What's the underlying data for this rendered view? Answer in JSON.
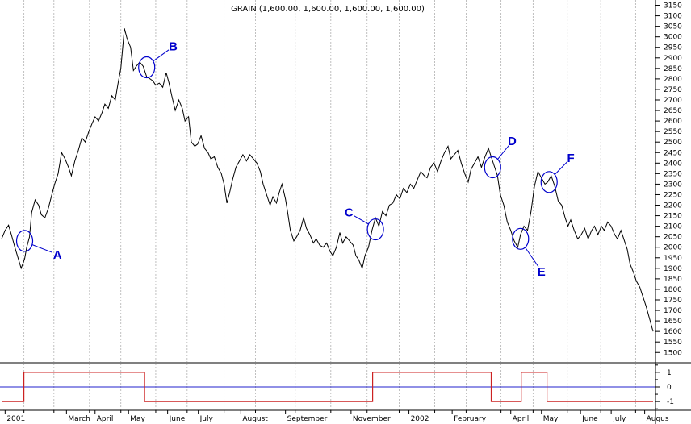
{
  "chart_data": {
    "type": "line",
    "title": "GRAIN (1,600.00, 1,600.00, 1,600.00, 1,600.00)",
    "xlabel": "",
    "ylabel": "",
    "ylim": [
      1455,
      3175
    ],
    "y_ticks": [
      1500,
      1550,
      1600,
      1650,
      1700,
      1750,
      1800,
      1850,
      1900,
      1950,
      2000,
      2050,
      2100,
      2150,
      2200,
      2250,
      2300,
      2350,
      2400,
      2450,
      2500,
      2550,
      2600,
      2650,
      2700,
      2750,
      2800,
      2850,
      2900,
      2950,
      3000,
      3050,
      3100,
      3150
    ],
    "x_range": [
      0,
      100
    ],
    "x_ticks": [
      {
        "label": "2001",
        "x": 0.5
      },
      {
        "label": "March",
        "x": 9.3
      },
      {
        "label": "April",
        "x": 13.4
      },
      {
        "label": "May",
        "x": 18.2
      },
      {
        "label": "June",
        "x": 23.8
      },
      {
        "label": "July",
        "x": 28.2
      },
      {
        "label": "August",
        "x": 34.3
      },
      {
        "label": "September",
        "x": 40.7
      },
      {
        "label": "November",
        "x": 50.1
      },
      {
        "label": "2002",
        "x": 58.4
      },
      {
        "label": "February",
        "x": 64.6
      },
      {
        "label": "April",
        "x": 73.0
      },
      {
        "label": "May",
        "x": 77.4
      },
      {
        "label": "June",
        "x": 83.0
      },
      {
        "label": "July",
        "x": 87.4
      },
      {
        "label": "Augus",
        "x": 92.2
      }
    ],
    "grid_x": [
      3.2,
      7.5,
      12.6,
      17.1,
      22.1,
      26.6,
      31.9,
      36.4,
      42.1,
      47.2,
      52.4,
      57.0,
      62.1,
      66.6,
      71.6,
      76.2,
      81.1,
      85.9,
      90.9
    ],
    "series": [
      {
        "values": [
          [
            0.0,
            2040
          ],
          [
            0.5,
            2080
          ],
          [
            1.0,
            2105
          ],
          [
            1.4,
            2060
          ],
          [
            1.9,
            2000
          ],
          [
            2.4,
            1945
          ],
          [
            2.8,
            1900
          ],
          [
            3.3,
            1945
          ],
          [
            3.6,
            2000
          ],
          [
            4.0,
            2050
          ],
          [
            4.3,
            2165
          ],
          [
            4.8,
            2225
          ],
          [
            5.3,
            2200
          ],
          [
            5.7,
            2155
          ],
          [
            6.2,
            2140
          ],
          [
            6.7,
            2185
          ],
          [
            7.2,
            2250
          ],
          [
            7.6,
            2300
          ],
          [
            8.1,
            2350
          ],
          [
            8.6,
            2450
          ],
          [
            9.1,
            2420
          ],
          [
            9.6,
            2380
          ],
          [
            10.0,
            2340
          ],
          [
            10.5,
            2410
          ],
          [
            11.0,
            2460
          ],
          [
            11.5,
            2520
          ],
          [
            12.0,
            2500
          ],
          [
            12.5,
            2550
          ],
          [
            13.0,
            2590
          ],
          [
            13.4,
            2620
          ],
          [
            13.9,
            2600
          ],
          [
            14.4,
            2640
          ],
          [
            14.8,
            2680
          ],
          [
            15.3,
            2660
          ],
          [
            15.8,
            2720
          ],
          [
            16.3,
            2700
          ],
          [
            16.7,
            2780
          ],
          [
            17.1,
            2850
          ],
          [
            17.6,
            3040
          ],
          [
            18.0,
            2990
          ],
          [
            18.5,
            2950
          ],
          [
            18.9,
            2840
          ],
          [
            19.3,
            2860
          ],
          [
            19.8,
            2880
          ],
          [
            20.3,
            2860
          ],
          [
            20.8,
            2810
          ],
          [
            21.3,
            2800
          ],
          [
            21.7,
            2790
          ],
          [
            22.1,
            2770
          ],
          [
            22.6,
            2780
          ],
          [
            23.1,
            2760
          ],
          [
            23.6,
            2830
          ],
          [
            24.0,
            2780
          ],
          [
            24.4,
            2720
          ],
          [
            24.9,
            2650
          ],
          [
            25.4,
            2700
          ],
          [
            25.9,
            2660
          ],
          [
            26.3,
            2600
          ],
          [
            26.8,
            2620
          ],
          [
            27.2,
            2500
          ],
          [
            27.7,
            2480
          ],
          [
            28.1,
            2490
          ],
          [
            28.6,
            2530
          ],
          [
            29.1,
            2470
          ],
          [
            29.6,
            2450
          ],
          [
            30.0,
            2420
          ],
          [
            30.5,
            2430
          ],
          [
            31.0,
            2380
          ],
          [
            31.5,
            2350
          ],
          [
            31.9,
            2300
          ],
          [
            32.3,
            2210
          ],
          [
            32.7,
            2260
          ],
          [
            33.1,
            2320
          ],
          [
            33.6,
            2380
          ],
          [
            34.1,
            2410
          ],
          [
            34.6,
            2440
          ],
          [
            35.1,
            2410
          ],
          [
            35.6,
            2440
          ],
          [
            36.1,
            2420
          ],
          [
            36.6,
            2400
          ],
          [
            37.1,
            2360
          ],
          [
            37.5,
            2300
          ],
          [
            38.0,
            2250
          ],
          [
            38.5,
            2200
          ],
          [
            38.9,
            2240
          ],
          [
            39.4,
            2210
          ],
          [
            39.8,
            2260
          ],
          [
            40.2,
            2300
          ],
          [
            40.7,
            2230
          ],
          [
            41.0,
            2170
          ],
          [
            41.4,
            2080
          ],
          [
            41.9,
            2030
          ],
          [
            42.3,
            2050
          ],
          [
            42.8,
            2080
          ],
          [
            43.3,
            2140
          ],
          [
            43.7,
            2090
          ],
          [
            44.2,
            2060
          ],
          [
            44.7,
            2020
          ],
          [
            45.1,
            2040
          ],
          [
            45.6,
            2010
          ],
          [
            46.1,
            2000
          ],
          [
            46.6,
            2020
          ],
          [
            47.1,
            1980
          ],
          [
            47.5,
            1960
          ],
          [
            48.0,
            2000
          ],
          [
            48.5,
            2070
          ],
          [
            48.9,
            2020
          ],
          [
            49.4,
            2050
          ],
          [
            49.9,
            2030
          ],
          [
            50.4,
            2010
          ],
          [
            50.8,
            1960
          ],
          [
            51.2,
            1940
          ],
          [
            51.7,
            1900
          ],
          [
            52.1,
            1960
          ],
          [
            52.6,
            2000
          ],
          [
            53.1,
            2080
          ],
          [
            53.6,
            2140
          ],
          [
            54.1,
            2100
          ],
          [
            54.6,
            2170
          ],
          [
            55.1,
            2150
          ],
          [
            55.6,
            2200
          ],
          [
            56.1,
            2210
          ],
          [
            56.6,
            2250
          ],
          [
            57.1,
            2230
          ],
          [
            57.6,
            2280
          ],
          [
            58.1,
            2260
          ],
          [
            58.6,
            2300
          ],
          [
            59.1,
            2280
          ],
          [
            59.6,
            2320
          ],
          [
            60.1,
            2360
          ],
          [
            60.6,
            2340
          ],
          [
            61.0,
            2330
          ],
          [
            61.5,
            2380
          ],
          [
            62.0,
            2400
          ],
          [
            62.5,
            2360
          ],
          [
            63.0,
            2410
          ],
          [
            63.5,
            2450
          ],
          [
            64.0,
            2480
          ],
          [
            64.4,
            2420
          ],
          [
            64.9,
            2440
          ],
          [
            65.4,
            2460
          ],
          [
            65.9,
            2400
          ],
          [
            66.4,
            2350
          ],
          [
            66.9,
            2310
          ],
          [
            67.3,
            2370
          ],
          [
            67.8,
            2400
          ],
          [
            68.3,
            2430
          ],
          [
            68.8,
            2380
          ],
          [
            69.3,
            2430
          ],
          [
            69.8,
            2470
          ],
          [
            70.2,
            2430
          ],
          [
            70.7,
            2380
          ],
          [
            71.1,
            2340
          ],
          [
            71.5,
            2250
          ],
          [
            72.0,
            2200
          ],
          [
            72.5,
            2120
          ],
          [
            73.0,
            2080
          ],
          [
            73.5,
            2030
          ],
          [
            74.0,
            2000
          ],
          [
            74.4,
            2060
          ],
          [
            74.9,
            2100
          ],
          [
            75.4,
            2080
          ],
          [
            75.9,
            2170
          ],
          [
            76.4,
            2290
          ],
          [
            76.9,
            2360
          ],
          [
            77.4,
            2330
          ],
          [
            77.9,
            2300
          ],
          [
            78.3,
            2310
          ],
          [
            78.8,
            2340
          ],
          [
            79.3,
            2290
          ],
          [
            79.8,
            2220
          ],
          [
            80.3,
            2200
          ],
          [
            80.8,
            2140
          ],
          [
            81.2,
            2100
          ],
          [
            81.6,
            2130
          ],
          [
            82.1,
            2080
          ],
          [
            82.6,
            2040
          ],
          [
            83.1,
            2060
          ],
          [
            83.6,
            2090
          ],
          [
            84.1,
            2040
          ],
          [
            84.6,
            2080
          ],
          [
            85.0,
            2100
          ],
          [
            85.5,
            2060
          ],
          [
            86.0,
            2100
          ],
          [
            86.4,
            2080
          ],
          [
            86.9,
            2120
          ],
          [
            87.4,
            2100
          ],
          [
            87.9,
            2060
          ],
          [
            88.3,
            2040
          ],
          [
            88.8,
            2080
          ],
          [
            89.2,
            2040
          ],
          [
            89.7,
            1990
          ],
          [
            90.1,
            1920
          ],
          [
            90.6,
            1880
          ],
          [
            91.0,
            1840
          ],
          [
            91.5,
            1810
          ],
          [
            92.0,
            1760
          ],
          [
            92.4,
            1720
          ],
          [
            92.9,
            1660
          ],
          [
            93.4,
            1600
          ]
        ]
      }
    ],
    "annotations": [
      {
        "label": "A",
        "x": 3.3,
        "y": 2030,
        "lx": 8.0,
        "ly": 1965
      },
      {
        "label": "B",
        "x": 20.8,
        "y": 2855,
        "lx": 24.6,
        "ly": 2955
      },
      {
        "label": "C",
        "x": 53.6,
        "y": 2085,
        "lx": 49.8,
        "ly": 2165
      },
      {
        "label": "D",
        "x": 70.4,
        "y": 2380,
        "lx": 73.2,
        "ly": 2505
      },
      {
        "label": "E",
        "x": 74.4,
        "y": 2040,
        "lx": 77.4,
        "ly": 1885
      },
      {
        "label": "F",
        "x": 78.5,
        "y": 2310,
        "lx": 81.6,
        "ly": 2425
      }
    ],
    "indicator": {
      "ylim": [
        -1.6,
        1.6
      ],
      "y_ticks": [
        1,
        0,
        -1
      ],
      "zero_line": 0,
      "steps": [
        [
          0,
          -1
        ],
        [
          3.2,
          -1
        ],
        [
          3.2,
          1
        ],
        [
          20.5,
          1
        ],
        [
          20.5,
          -1
        ],
        [
          53.2,
          -1
        ],
        [
          53.2,
          1
        ],
        [
          70.2,
          1
        ],
        [
          70.2,
          -1
        ],
        [
          74.5,
          -1
        ],
        [
          74.5,
          1
        ],
        [
          78.2,
          1
        ],
        [
          78.2,
          -1
        ],
        [
          93.4,
          -1
        ]
      ]
    },
    "grid": true,
    "legend": "none"
  },
  "colors": {
    "price": "#000000",
    "annotation": "#0000cc",
    "indicator_step": "#cc2222",
    "indicator_zero": "#2222cc",
    "grid": "#b0b0b0"
  }
}
